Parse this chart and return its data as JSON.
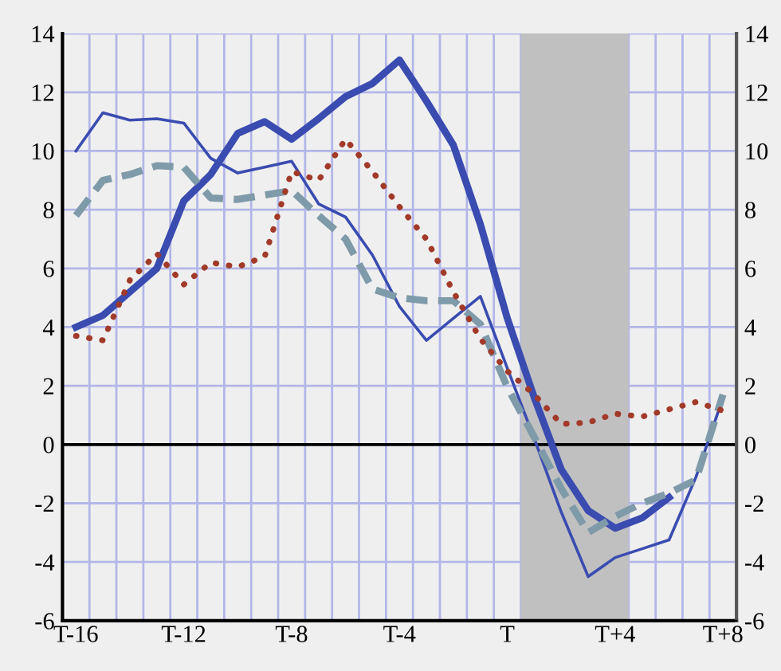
{
  "chart_data": {
    "type": "line",
    "categories": [
      "T-16",
      null,
      null,
      null,
      "T-12",
      null,
      null,
      null,
      "T-8",
      null,
      null,
      null,
      "T-4",
      null,
      null,
      null,
      "T",
      null,
      null,
      null,
      "T+4",
      null,
      null,
      null,
      "T+8"
    ],
    "series": [
      {
        "color": "#3a4cb0",
        "line_style": "solid",
        "values": [
          4.0,
          4.4,
          5.2,
          6.0,
          8.3,
          9.2,
          10.6,
          11.0,
          10.4,
          11.1,
          11.85,
          12.3,
          13.1,
          11.7,
          10.2,
          7.5,
          4.3,
          1.6,
          -0.85,
          -2.25,
          -2.85,
          -2.5,
          -1.8,
          null,
          null
        ]
      },
      {
        "color": "#3a4cb0",
        "line_style": "solid",
        "values": [
          10.0,
          11.3,
          11.05,
          11.1,
          10.95,
          9.75,
          9.25,
          9.45,
          9.65,
          8.2,
          7.75,
          6.45,
          4.7,
          3.55,
          4.3,
          5.05,
          2.6,
          0.2,
          -2.3,
          -4.5,
          -3.85,
          -3.55,
          -3.25,
          -1.1,
          1.6
        ]
      },
      {
        "color": "#7f9aa8",
        "line_style": "dashed",
        "values": [
          7.8,
          9.0,
          9.2,
          9.5,
          9.45,
          8.4,
          8.35,
          8.5,
          8.65,
          7.8,
          7.0,
          5.3,
          5.0,
          4.9,
          4.9,
          4.1,
          1.95,
          0.25,
          -1.5,
          -3.0,
          -2.45,
          -2.0,
          -1.65,
          -1.2,
          1.7
        ]
      },
      {
        "color": "#a23a2a",
        "line_style": "dotted",
        "values": [
          3.7,
          3.55,
          5.6,
          6.5,
          5.45,
          6.2,
          6.05,
          6.4,
          9.3,
          9.0,
          10.4,
          9.3,
          8.1,
          7.0,
          5.2,
          3.6,
          2.5,
          1.7,
          0.7,
          0.75,
          1.05,
          0.95,
          1.2,
          1.45,
          1.15
        ]
      }
    ],
    "ylim": [
      -6,
      14
    ],
    "yticks": [
      -6,
      -4,
      -2,
      0,
      2,
      4,
      6,
      8,
      10,
      12,
      14
    ],
    "y2lim": [
      -6,
      14
    ],
    "y2ticks": [
      -6,
      -4,
      -2,
      0,
      2,
      4,
      6,
      8,
      10,
      12,
      14
    ],
    "grid": true,
    "legend": false,
    "marker": "none",
    "bands": [
      {
        "axis": "x",
        "from": "T",
        "to": "T+4",
        "color": "#c0c0c0"
      }
    ],
    "ref_lines": [
      {
        "axis": "y",
        "value": 0,
        "color": "#000000",
        "line_style": "solid"
      }
    ]
  }
}
